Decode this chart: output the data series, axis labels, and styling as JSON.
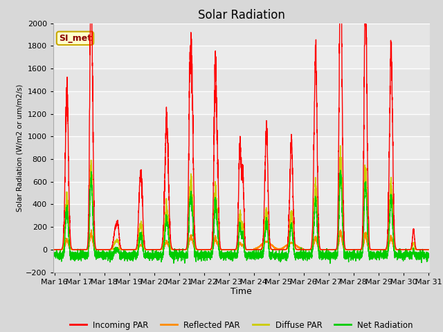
{
  "title": "Solar Radiation",
  "ylabel": "Solar Radiation (W/m2 or um/m2/s)",
  "xlabel": "Time",
  "ylim": [
    -200,
    2000
  ],
  "bg_color": "#d8d8d8",
  "plot_bg_color": "#ebebeb",
  "annotation_text": "SI_met",
  "annotation_color": "#8b0000",
  "annotation_bg": "#ffffcc",
  "annotation_border": "#c8a800",
  "x_tick_labels": [
    "Mar 16",
    "Mar 17",
    "Mar 18",
    "Mar 19",
    "Mar 20",
    "Mar 21",
    "Mar 22",
    "Mar 23",
    "Mar 24",
    "Mar 25",
    "Mar 26",
    "Mar 27",
    "Mar 28",
    "Mar 29",
    "Mar 30",
    "Mar 31"
  ],
  "legend_labels": [
    "Incoming PAR",
    "Reflected PAR",
    "Diffuse PAR",
    "Net Radiation"
  ],
  "legend_colors": [
    "#ff0000",
    "#ff8c00",
    "#cccc00",
    "#00cc00"
  ],
  "grid_color": "#ffffff",
  "title_fontsize": 12
}
